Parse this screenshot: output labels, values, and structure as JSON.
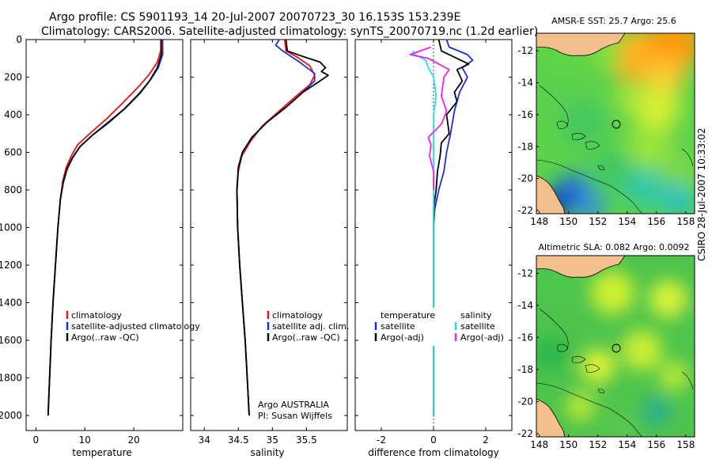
{
  "header": {
    "line1": "Argo profile: CS 5901193_14 20-Jul-2007 20070723_30 16.153S 153.239E",
    "line2": "Climatology: CARS2006. Satellite-adjusted climatology: synTS_20070719.nc (1.2d earlier)"
  },
  "side_label": "CSIRO 28-Jul-2007 10:33:02",
  "colors": {
    "red": "#ee1111",
    "blue": "#1f2fd8",
    "black": "#000000",
    "cyan": "#22e0e8",
    "magenta": "#ee22ee"
  },
  "chart_data": [
    {
      "type": "line",
      "id": "temperature",
      "xlabel": "temperature",
      "xlim": [
        -2,
        30
      ],
      "xticks": [
        0,
        10,
        20
      ],
      "ylim": [
        0,
        2080
      ],
      "yticks": [
        0,
        200,
        400,
        600,
        800,
        1000,
        1200,
        1400,
        1600,
        1800,
        2000
      ],
      "y_reversed": true,
      "legend": [
        "climatology",
        "satellite-adjusted climatology",
        "Argo(..raw -QC)"
      ],
      "series": [
        {
          "name": "climatology",
          "color": "red",
          "points": [
            [
              25.5,
              0
            ],
            [
              25.5,
              60
            ],
            [
              24.8,
              120
            ],
            [
              23.3,
              180
            ],
            [
              21.0,
              250
            ],
            [
              18.0,
              330
            ],
            [
              14.5,
              420
            ],
            [
              11.0,
              500
            ],
            [
              8.5,
              560
            ],
            [
              7.2,
              620
            ],
            [
              6.2,
              680
            ],
            [
              5.5,
              750
            ],
            [
              5.0,
              850
            ],
            [
              4.5,
              1000
            ],
            [
              4.0,
              1200
            ],
            [
              3.5,
              1400
            ],
            [
              3.1,
              1600
            ],
            [
              2.8,
              1800
            ],
            [
              2.5,
              2000
            ]
          ]
        },
        {
          "name": "satellite-adjusted climatology",
          "color": "blue",
          "points": [
            [
              25.9,
              0
            ],
            [
              25.9,
              80
            ],
            [
              25.0,
              150
            ],
            [
              23.5,
              210
            ],
            [
              21.5,
              280
            ],
            [
              18.5,
              360
            ],
            [
              15.0,
              440
            ],
            [
              11.5,
              510
            ],
            [
              9.0,
              570
            ],
            [
              7.5,
              630
            ],
            [
              6.4,
              690
            ],
            [
              5.6,
              760
            ],
            [
              5.0,
              850
            ],
            [
              4.5,
              1000
            ],
            [
              4.0,
              1200
            ],
            [
              3.5,
              1400
            ],
            [
              3.1,
              1600
            ],
            [
              2.8,
              1800
            ],
            [
              2.5,
              2000
            ]
          ]
        },
        {
          "name": "Argo(..raw -QC)",
          "color": "black",
          "points": [
            [
              25.6,
              0
            ],
            [
              25.6,
              80
            ],
            [
              24.8,
              150
            ],
            [
              23.2,
              220
            ],
            [
              21.0,
              290
            ],
            [
              18.0,
              370
            ],
            [
              14.8,
              440
            ],
            [
              11.5,
              510
            ],
            [
              9.0,
              570
            ],
            [
              7.4,
              630
            ],
            [
              6.3,
              690
            ],
            [
              5.6,
              760
            ],
            [
              5.0,
              850
            ],
            [
              4.5,
              1000
            ],
            [
              4.0,
              1200
            ],
            [
              3.5,
              1400
            ],
            [
              3.1,
              1600
            ],
            [
              2.8,
              1800
            ],
            [
              2.5,
              2000
            ]
          ]
        }
      ]
    },
    {
      "type": "line",
      "id": "salinity",
      "xlabel": "salinity",
      "xlim": [
        33.8,
        36.1
      ],
      "xticks": [
        34,
        34.5,
        35,
        35.5
      ],
      "ylim": [
        0,
        2080
      ],
      "y_reversed": true,
      "legend": [
        "climatology",
        "satellite adj. clim.",
        "Argo(..raw -QC)"
      ],
      "annotation": [
        "Argo AUSTRALIA",
        "PI: Susan Wijffels"
      ],
      "series": [
        {
          "name": "climatology",
          "color": "red",
          "points": [
            [
              35.18,
              0
            ],
            [
              35.2,
              60
            ],
            [
              35.35,
              90
            ],
            [
              35.55,
              140
            ],
            [
              35.62,
              190
            ],
            [
              35.55,
              240
            ],
            [
              35.35,
              300
            ],
            [
              35.1,
              380
            ],
            [
              34.85,
              460
            ],
            [
              34.68,
              540
            ],
            [
              34.55,
              620
            ],
            [
              34.5,
              700
            ],
            [
              34.48,
              800
            ],
            [
              34.49,
              1000
            ],
            [
              34.52,
              1200
            ],
            [
              34.56,
              1400
            ],
            [
              34.6,
              1600
            ],
            [
              34.63,
              1800
            ],
            [
              34.66,
              2000
            ]
          ]
        },
        {
          "name": "satellite adj. clim.",
          "color": "blue",
          "points": [
            [
              35.1,
              0
            ],
            [
              35.05,
              30
            ],
            [
              35.15,
              60
            ],
            [
              35.4,
              120
            ],
            [
              35.62,
              180
            ],
            [
              35.62,
              220
            ],
            [
              35.45,
              280
            ],
            [
              35.2,
              360
            ],
            [
              34.92,
              440
            ],
            [
              34.7,
              520
            ],
            [
              34.56,
              600
            ],
            [
              34.5,
              680
            ],
            [
              34.48,
              800
            ],
            [
              34.49,
              1000
            ],
            [
              34.52,
              1200
            ],
            [
              34.56,
              1400
            ],
            [
              34.6,
              1600
            ],
            [
              34.63,
              1800
            ],
            [
              34.66,
              2000
            ]
          ]
        },
        {
          "name": "Argo(..raw -QC)",
          "color": "black",
          "points": [
            [
              35.2,
              0
            ],
            [
              35.22,
              60
            ],
            [
              35.45,
              90
            ],
            [
              35.7,
              120
            ],
            [
              35.78,
              150
            ],
            [
              35.72,
              170
            ],
            [
              35.82,
              190
            ],
            [
              35.7,
              220
            ],
            [
              35.45,
              280
            ],
            [
              35.2,
              360
            ],
            [
              34.92,
              440
            ],
            [
              34.7,
              520
            ],
            [
              34.56,
              600
            ],
            [
              34.5,
              680
            ],
            [
              34.48,
              800
            ],
            [
              34.49,
              1000
            ],
            [
              34.52,
              1200
            ],
            [
              34.56,
              1400
            ],
            [
              34.6,
              1600
            ],
            [
              34.63,
              1800
            ],
            [
              34.66,
              2000
            ]
          ]
        }
      ]
    },
    {
      "type": "line",
      "id": "difference",
      "xlabel": "difference from climatology",
      "xlim": [
        -3,
        3
      ],
      "xticks": [
        -2,
        0,
        2
      ],
      "ylim": [
        0,
        2080
      ],
      "y_reversed": true,
      "legend_columns": [
        {
          "heading": "temperature",
          "entries": [
            "satellite",
            "Argo(-adj)"
          ]
        },
        {
          "heading": "salinity",
          "entries": [
            "satellite",
            "Argo(-adj)"
          ]
        }
      ],
      "series": [
        {
          "name": "temperature satellite",
          "color": "blue",
          "points": [
            [
              0.5,
              0
            ],
            [
              0.6,
              40
            ],
            [
              1.3,
              80
            ],
            [
              1.5,
              110
            ],
            [
              1.1,
              150
            ],
            [
              1.3,
              200
            ],
            [
              1.0,
              280
            ],
            [
              0.8,
              380
            ],
            [
              0.65,
              500
            ],
            [
              0.5,
              600
            ],
            [
              0.4,
              700
            ],
            [
              0.2,
              800
            ],
            [
              0.05,
              900
            ],
            [
              0,
              1000
            ],
            [
              0,
              2000
            ]
          ]
        },
        {
          "name": "temperature Argo(-adj)",
          "color": "black",
          "points": [
            [
              0.2,
              0
            ],
            [
              0.3,
              60
            ],
            [
              0.9,
              100
            ],
            [
              1.35,
              130
            ],
            [
              0.9,
              160
            ],
            [
              1.1,
              220
            ],
            [
              0.8,
              280
            ],
            [
              0.9,
              330
            ],
            [
              0.5,
              400
            ],
            [
              0.6,
              500
            ],
            [
              0.3,
              550
            ],
            [
              0.25,
              620
            ],
            [
              0.15,
              700
            ],
            [
              0.1,
              800
            ],
            [
              0,
              900
            ],
            [
              0,
              2000
            ]
          ]
        },
        {
          "name": "salinity satellite",
          "color": "cyan",
          "points": [
            [
              -0.8,
              60
            ],
            [
              -0.7,
              80
            ],
            [
              -0.3,
              110
            ],
            [
              -0.2,
              150
            ],
            [
              0,
              200
            ],
            [
              0.1,
              300
            ],
            [
              0,
              400
            ],
            [
              0,
              600
            ],
            [
              0,
              800
            ],
            [
              0,
              1000
            ],
            [
              0,
              2000
            ]
          ]
        },
        {
          "name": "salinity Argo(-adj)",
          "color": "magenta",
          "points": [
            [
              -0.1,
              40
            ],
            [
              -0.9,
              80
            ],
            [
              -0.2,
              100
            ],
            [
              0.2,
              130
            ],
            [
              0.6,
              160
            ],
            [
              0.4,
              200
            ],
            [
              0.3,
              300
            ],
            [
              0.5,
              380
            ],
            [
              0.3,
              450
            ],
            [
              -0.2,
              520
            ],
            [
              -0.1,
              560
            ],
            [
              -0.15,
              620
            ],
            [
              0,
              700
            ],
            [
              0,
              800
            ]
          ]
        }
      ]
    },
    {
      "type": "heatmap",
      "id": "sst-map",
      "title": "AMSR-E SST: 25.7 Argo: 25.6",
      "xlim": [
        147.8,
        158.6
      ],
      "xticks": [
        148,
        150,
        152,
        154,
        156,
        158
      ],
      "ylim": [
        -22.2,
        -10.9
      ],
      "yticks": [
        -12,
        -14,
        -16,
        -18,
        -20,
        -22
      ],
      "float_position": [
        153.239,
        -16.153
      ],
      "cells": [
        {
          "lon": 154.5,
          "lat": -12.3,
          "r": 1.8,
          "color": "#ffb020"
        },
        {
          "lon": 157.2,
          "lat": -11.6,
          "r": 1.8,
          "color": "#ff9a10"
        },
        {
          "lon": 156.6,
          "lat": -13.6,
          "r": 1.3,
          "color": "#ffc830"
        },
        {
          "lon": 149.5,
          "lat": -11.8,
          "r": 1.2,
          "color": "#60d840"
        },
        {
          "lon": 152.5,
          "lat": -12.0,
          "r": 1.2,
          "color": "#7ee03a"
        },
        {
          "lon": 156.0,
          "lat": -15.6,
          "r": 1.6,
          "color": "#d8f030"
        },
        {
          "lon": 154.2,
          "lat": -15.0,
          "r": 1.0,
          "color": "#a8e83a"
        },
        {
          "lon": 149.0,
          "lat": -14.5,
          "r": 1.3,
          "color": "#5ad050"
        },
        {
          "lon": 151.0,
          "lat": -16.5,
          "r": 1.6,
          "color": "#44c860"
        },
        {
          "lon": 155.5,
          "lat": -18.0,
          "r": 1.5,
          "color": "#9ae43a"
        },
        {
          "lon": 153.0,
          "lat": -19.5,
          "r": 1.5,
          "color": "#40c860"
        },
        {
          "lon": 157.5,
          "lat": -19.5,
          "r": 1.3,
          "color": "#7ad848"
        },
        {
          "lon": 155.2,
          "lat": -20.6,
          "r": 1.4,
          "color": "#30c8a8"
        },
        {
          "lon": 157.5,
          "lat": -21.4,
          "r": 1.1,
          "color": "#20c0c8"
        },
        {
          "lon": 150.3,
          "lat": -20.8,
          "r": 1.2,
          "color": "#2070e0"
        },
        {
          "lon": 149.1,
          "lat": -21.6,
          "r": 1.0,
          "color": "#1030b0"
        },
        {
          "lon": 151.5,
          "lat": -21.8,
          "r": 1.0,
          "color": "#3090e0"
        }
      ]
    },
    {
      "type": "heatmap",
      "id": "sla-map",
      "title": "Altimetric SLA: 0.082 Argo: 0.0092",
      "xlim": [
        147.8,
        158.6
      ],
      "xticks": [
        148,
        150,
        152,
        154,
        156,
        158
      ],
      "ylim": [
        -22.2,
        -10.9
      ],
      "yticks": [
        -12,
        -14,
        -16,
        -18,
        -20,
        -22
      ],
      "float_position": [
        153.239,
        -16.153
      ],
      "cells": [
        {
          "lon": 153.0,
          "lat": -13.2,
          "r": 1.5,
          "color": "#cef030"
        },
        {
          "lon": 156.8,
          "lat": -13.6,
          "r": 1.3,
          "color": "#d8f23a"
        },
        {
          "lon": 149.5,
          "lat": -12.5,
          "r": 1.1,
          "color": "#4cc84a"
        },
        {
          "lon": 152.0,
          "lat": -17.8,
          "r": 1.2,
          "color": "#dcf238"
        },
        {
          "lon": 155.0,
          "lat": -16.8,
          "r": 1.4,
          "color": "#c8ee34"
        },
        {
          "lon": 148.8,
          "lat": -17.0,
          "r": 1.2,
          "color": "#2cb848"
        },
        {
          "lon": 157.2,
          "lat": -18.4,
          "r": 1.0,
          "color": "#b8ea3a"
        },
        {
          "lon": 150.8,
          "lat": -20.3,
          "r": 1.0,
          "color": "#bce838"
        },
        {
          "lon": 156.0,
          "lat": -20.6,
          "r": 1.0,
          "color": "#2ab08a"
        },
        {
          "lon": 153.5,
          "lat": -21.4,
          "r": 1.0,
          "color": "#5ac850"
        }
      ]
    }
  ]
}
